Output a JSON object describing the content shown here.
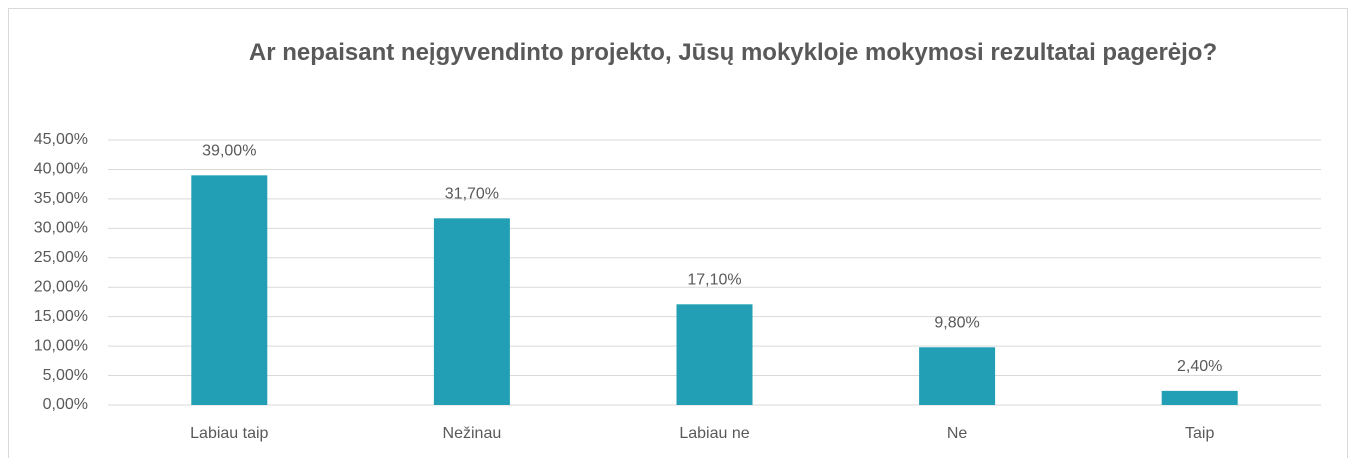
{
  "chart_data": {
    "type": "bar",
    "title": "Ar nepaisant neįgyvendinto projekto, Jūsų mokykloje mokymosi rezultatai pagerėjo?",
    "categories": [
      "Labiau taip",
      "Nežinau",
      "Labiau ne",
      "Ne",
      "Taip"
    ],
    "values": [
      39,
      31.7,
      17.1,
      9.8,
      2.4
    ],
    "value_labels": [
      "39,00%",
      "31,70%",
      "17,10%",
      "9,80%",
      "2,40%"
    ],
    "color": "#229fb5",
    "ylim": [
      0,
      45
    ],
    "yticks": [
      {
        "value": 0,
        "label": "0,00%"
      },
      {
        "value": 5,
        "label": "5,00%"
      },
      {
        "value": 10,
        "label": "10,00%"
      },
      {
        "value": 15,
        "label": "15,00%"
      },
      {
        "value": 20,
        "label": "20,00%"
      },
      {
        "value": 25,
        "label": "25,00%"
      },
      {
        "value": 30,
        "label": "30,00%"
      },
      {
        "value": 35,
        "label": "35,00%"
      },
      {
        "value": 40,
        "label": "40,00%"
      },
      {
        "value": 45,
        "label": "45,00%"
      }
    ],
    "grid": true
  }
}
